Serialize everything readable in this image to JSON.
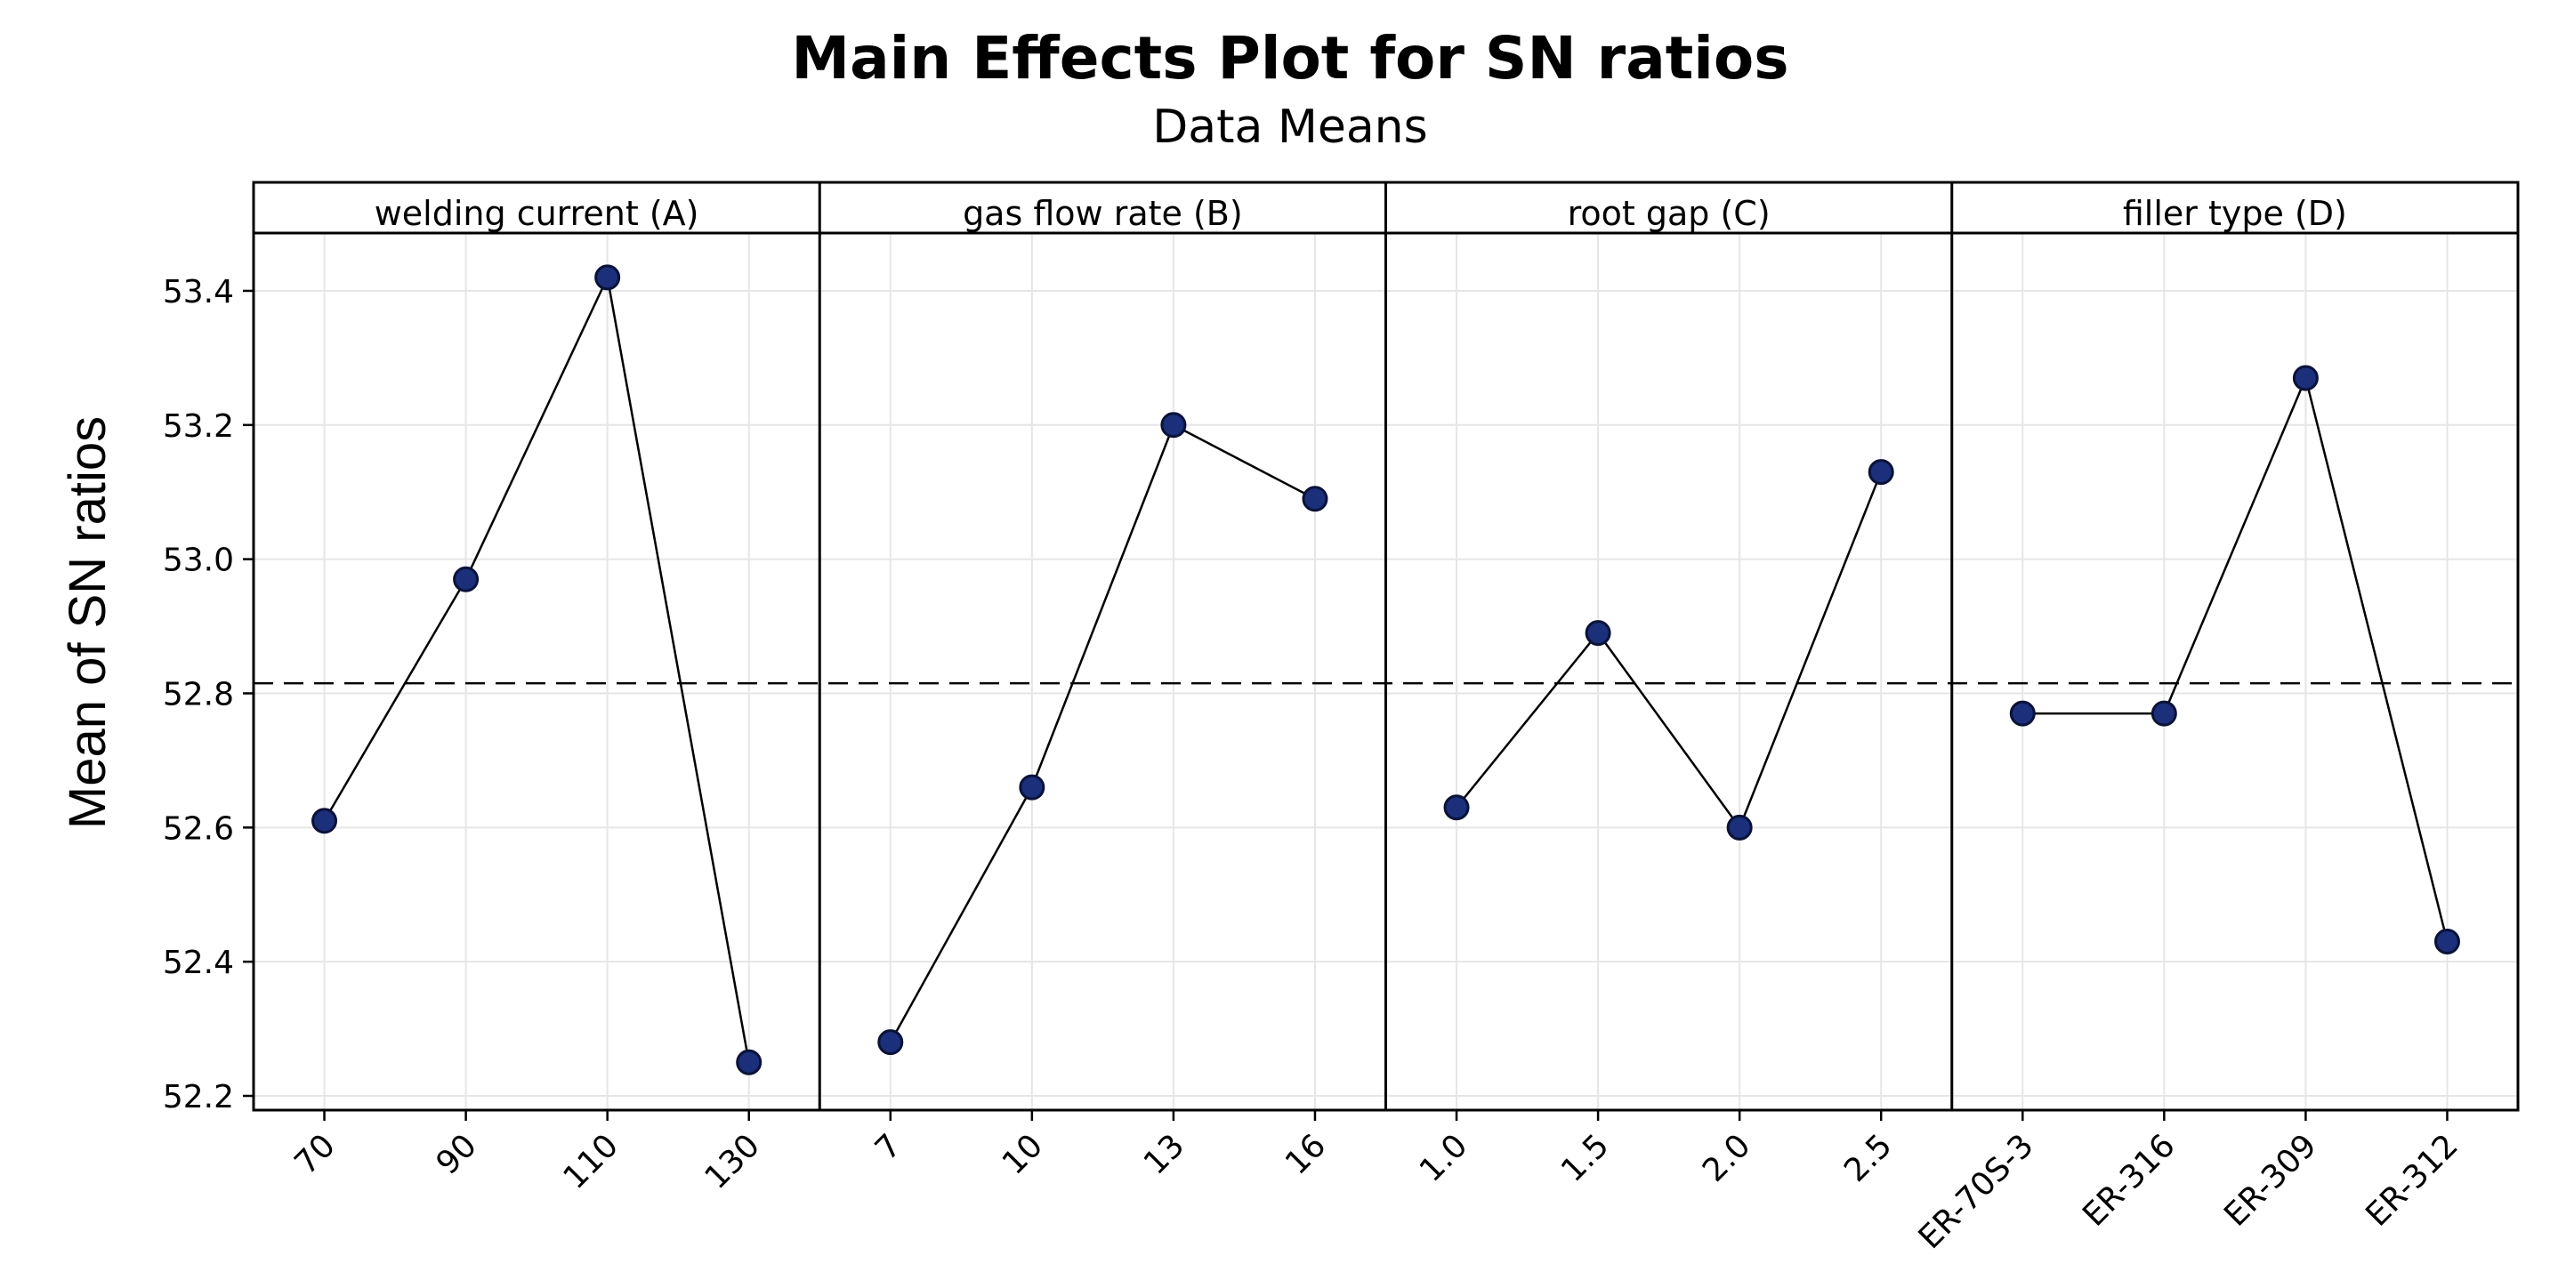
{
  "chart_data": {
    "type": "line",
    "title": "Main Effects Plot for SN ratios",
    "subtitle": "Data Means",
    "ylabel": "Mean of SN ratios",
    "ylim": [
      52.17,
      53.55
    ],
    "yticks": [
      "52.2",
      "52.4",
      "52.6",
      "52.8",
      "53.0",
      "53.2",
      "53.4"
    ],
    "ytick_values": [
      52.2,
      52.4,
      52.6,
      52.8,
      53.0,
      53.2,
      53.4
    ],
    "reference_line": 52.815,
    "grid": true,
    "marker_color": "#1b2f7a",
    "panels": [
      {
        "name": "welding current (A)",
        "categories": [
          "70",
          "90",
          "110",
          "130"
        ],
        "values": [
          52.61,
          52.97,
          53.42,
          52.25
        ]
      },
      {
        "name": "gas flow rate (B)",
        "categories": [
          "7",
          "10",
          "13",
          "16"
        ],
        "values": [
          52.28,
          52.66,
          53.2,
          53.09
        ]
      },
      {
        "name": "root gap (C)",
        "categories": [
          "1.0",
          "1.5",
          "2.0",
          "2.5"
        ],
        "values": [
          52.63,
          52.89,
          52.6,
          53.13
        ]
      },
      {
        "name": "filler type (D)",
        "categories": [
          "ER-70S-3",
          "ER-316",
          "ER-309",
          "ER-312"
        ],
        "values": [
          52.77,
          52.77,
          53.27,
          52.43
        ]
      }
    ]
  }
}
